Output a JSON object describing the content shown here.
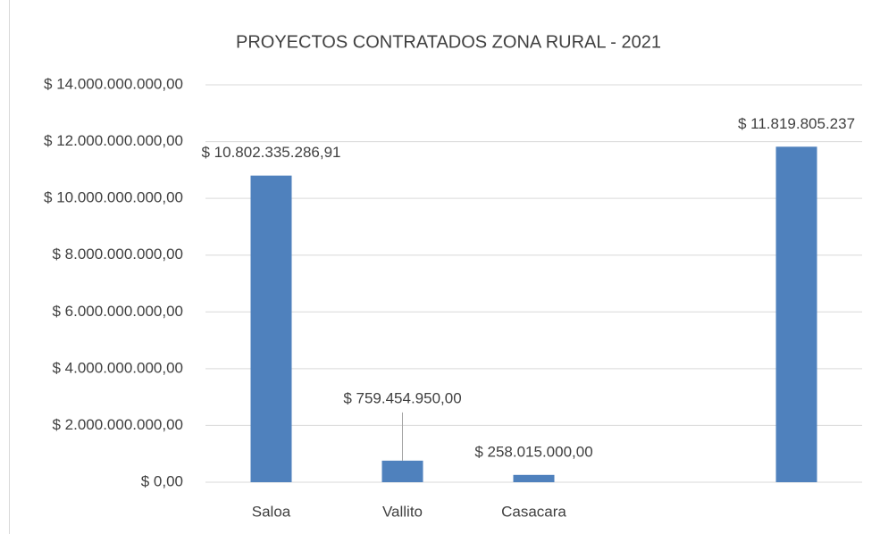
{
  "chart_data": {
    "type": "bar",
    "title": "PROYECTOS CONTRATADOS ZONA RURAL - 2021",
    "categories": [
      "Saloa",
      "Vallito",
      "Casacara",
      null,
      null
    ],
    "values": [
      10802335286.91,
      759454950,
      258015000,
      null,
      11819805237
    ],
    "value_labels": [
      "$ 10.802.335.286,91",
      "$ 759.454.950,00",
      "$ 258.015.000,00",
      null,
      "$ 11.819.805.237"
    ],
    "color": "#4f81bd",
    "ylim": [
      0,
      14000000000
    ],
    "yticks": [
      {
        "value": 0,
        "label": "$ 0,00"
      },
      {
        "value": 2000000000,
        "label": "$ 2.000.000.000,00"
      },
      {
        "value": 4000000000,
        "label": "$ 4.000.000.000,00"
      },
      {
        "value": 6000000000,
        "label": "$ 6.000.000.000,00"
      },
      {
        "value": 8000000000,
        "label": "$ 8.000.000.000,00"
      },
      {
        "value": 10000000000,
        "label": "$ 10.000.000.000,00"
      },
      {
        "value": 12000000000,
        "label": "$ 12.000.000.000,00"
      },
      {
        "value": 14000000000,
        "label": "$ 14.000.000.000,00"
      }
    ],
    "grid": true
  }
}
